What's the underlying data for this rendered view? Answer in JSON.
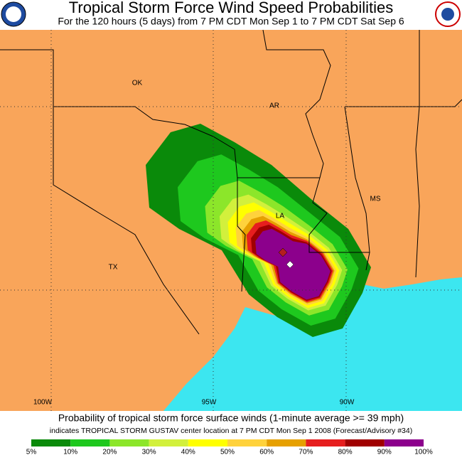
{
  "header": {
    "title": "Tropical Storm Force Wind Speed Probabilities",
    "subtitle": "For the 120 hours (5 days) from 7 PM CDT Mon Sep 1 to 7 PM CDT Sat Sep 6"
  },
  "map": {
    "state_labels": [
      "OK",
      "AR",
      "MS",
      "TX",
      "LA"
    ],
    "longitude_labels": [
      "100W",
      "95W",
      "90W"
    ]
  },
  "footer": {
    "caption": "Probability of tropical storm force surface winds (1-minute average >= 39 mph)",
    "note": "indicates TROPICAL STORM GUSTAV center location at 7 PM CDT Mon Sep 1 2008 (Forecast/Advisory #34)"
  },
  "legend": {
    "labels": [
      "5%",
      "10%",
      "20%",
      "30%",
      "40%",
      "50%",
      "60%",
      "70%",
      "80%",
      "90%",
      "100%"
    ],
    "colors": [
      "#0a8a0a",
      "#1ec81e",
      "#8ce62a",
      "#d2f03c",
      "#ffff00",
      "#ffd23c",
      "#e6a000",
      "#e61e1e",
      "#a00000",
      "#8c008c"
    ]
  }
}
